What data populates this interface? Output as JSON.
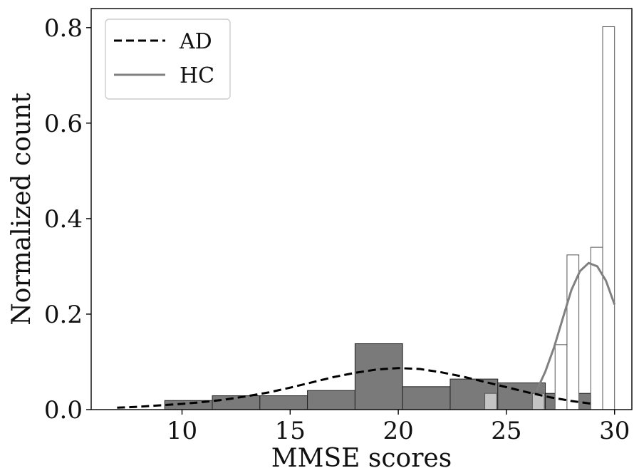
{
  "chart_data": {
    "type": "bar",
    "title": "",
    "xlabel": "MMSE scores",
    "ylabel": "Normalized count",
    "xlim": [
      5.8,
      30.8
    ],
    "ylim": [
      0,
      0.84
    ],
    "xticks": [
      10,
      15,
      20,
      25,
      30
    ],
    "yticks": [
      0.0,
      0.2,
      0.4,
      0.6,
      0.8
    ],
    "xtick_labels": [
      "10",
      "15",
      "20",
      "25",
      "30"
    ],
    "ytick_labels": [
      "0.0",
      "0.2",
      "0.4",
      "0.6",
      "0.8"
    ],
    "grid": false,
    "legend": {
      "position": "top-left",
      "entries": [
        {
          "label": "AD",
          "style": "dashed",
          "color": "#000000"
        },
        {
          "label": "HC",
          "style": "solid",
          "color": "#808080"
        }
      ]
    },
    "series": [
      {
        "name": "AD",
        "kind": "histogram",
        "fill": "#7a7a7a",
        "bins": [
          {
            "x0": 9.2,
            "x1": 11.4,
            "y": 0.019
          },
          {
            "x0": 11.4,
            "x1": 13.6,
            "y": 0.029
          },
          {
            "x0": 13.6,
            "x1": 15.8,
            "y": 0.029
          },
          {
            "x0": 15.8,
            "x1": 18.0,
            "y": 0.04
          },
          {
            "x0": 18.0,
            "x1": 20.2,
            "y": 0.138
          },
          {
            "x0": 20.2,
            "x1": 22.4,
            "y": 0.048
          },
          {
            "x0": 22.4,
            "x1": 24.6,
            "y": 0.064
          },
          {
            "x0": 24.6,
            "x1": 26.8,
            "y": 0.056
          },
          {
            "x0": 26.8,
            "x1": 29.0,
            "y": 0.034
          }
        ],
        "kde": {
          "x": [
            7,
            8,
            9,
            10,
            11,
            12,
            13,
            14,
            15,
            16,
            17,
            18,
            19,
            20,
            21,
            22,
            23,
            24,
            25,
            26,
            27,
            28,
            29
          ],
          "y": [
            0.004,
            0.006,
            0.009,
            0.012,
            0.016,
            0.021,
            0.028,
            0.036,
            0.046,
            0.057,
            0.068,
            0.077,
            0.084,
            0.087,
            0.085,
            0.078,
            0.069,
            0.058,
            0.047,
            0.036,
            0.026,
            0.018,
            0.012
          ]
        }
      },
      {
        "name": "HC",
        "kind": "histogram",
        "fill": "#ffffff",
        "overlap_fill": "#c4c4c4",
        "bins": [
          {
            "x0": 24.0,
            "x1": 24.55,
            "y": 0.034
          },
          {
            "x0": 26.2,
            "x1": 26.75,
            "y": 0.034
          },
          {
            "x0": 27.25,
            "x1": 27.8,
            "y": 0.136
          },
          {
            "x0": 27.8,
            "x1": 28.35,
            "y": 0.324
          },
          {
            "x0": 28.9,
            "x1": 29.45,
            "y": 0.34
          },
          {
            "x0": 29.45,
            "x1": 30.0,
            "y": 0.802
          }
        ],
        "kde": {
          "x": [
            26.4,
            26.8,
            27.2,
            27.6,
            28.0,
            28.4,
            28.8,
            29.2,
            29.6,
            30.0
          ],
          "y": [
            0.04,
            0.08,
            0.13,
            0.19,
            0.25,
            0.29,
            0.307,
            0.3,
            0.27,
            0.22
          ]
        }
      }
    ]
  }
}
